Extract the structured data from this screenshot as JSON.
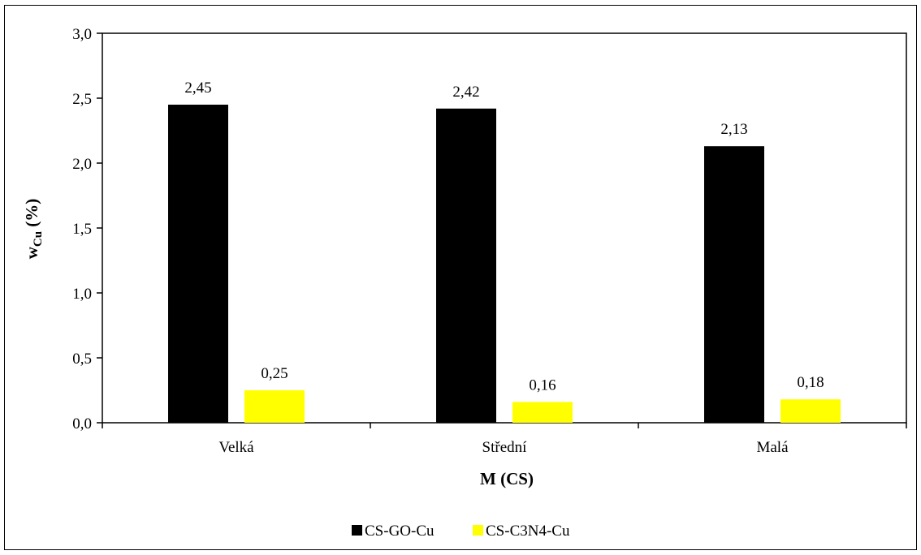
{
  "chart_data": {
    "type": "bar",
    "categories": [
      "Velká",
      "Střední",
      "Malá"
    ],
    "series": [
      {
        "name": "CS-GO-Cu",
        "values": [
          2.45,
          2.42,
          2.13
        ],
        "labels": [
          "2,45",
          "2,42",
          "2,13"
        ],
        "color": "#000000"
      },
      {
        "name": "CS-C3N4-Cu",
        "values": [
          0.25,
          0.16,
          0.18
        ],
        "labels": [
          "0,25",
          "0,16",
          "0,18"
        ],
        "color": "#FFFF00"
      }
    ],
    "ylim": [
      0,
      3.0
    ],
    "yticks": [
      0,
      0.5,
      1.0,
      1.5,
      2.0,
      2.5,
      3.0
    ],
    "ytick_labels": [
      "0,0",
      "0,5",
      "1,0",
      "1,5",
      "2,0",
      "2,5",
      "3,0"
    ],
    "xlabel": "M (CS)",
    "ylabel": {
      "main": "w",
      "sub": "Cu",
      "unit": " (%)"
    },
    "legend_position": "bottom",
    "grid": false
  }
}
